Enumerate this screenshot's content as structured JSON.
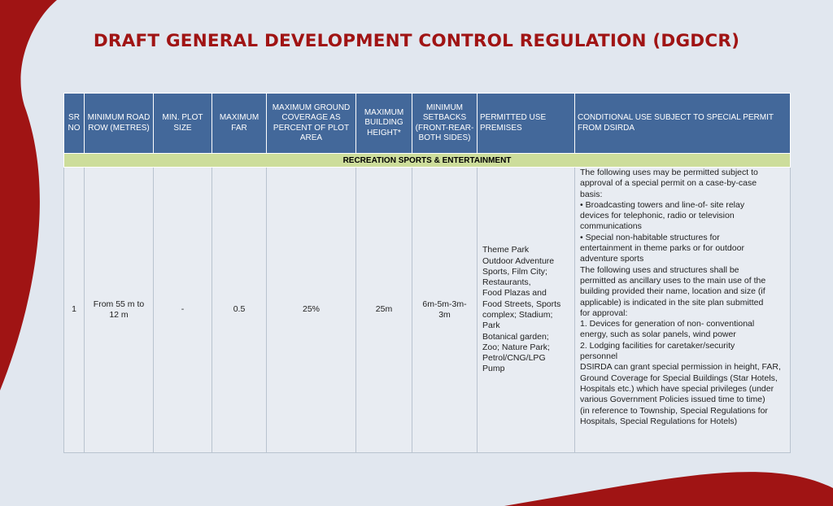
{
  "page": {
    "title": "DRAFT GENERAL DEVELOPMENT CONTROL REGULATION (DGDCR)"
  },
  "colors": {
    "background_red": "#a01414",
    "panel": "#e1e7ef",
    "header_blue": "#43689a",
    "category_green": "#cddd9b"
  },
  "table": {
    "headers": [
      "SR NO",
      "MINIMUM ROAD ROW (METRES)",
      "MIN. PLOT SIZE",
      "MAXIMUM FAR",
      "MAXIMUM GROUND COVERAGE AS PERCENT OF PLOT AREA",
      "MAXIMUM BUILDING HEIGHT*",
      "MINIMUM SETBACKS (FRONT-REAR-BOTH SIDES)",
      "PERMITTED USE PREMISES",
      "CONDITIONAL USE SUBJECT TO SPECIAL PERMIT FROM DSIRDA"
    ],
    "category": "RECREATION SPORTS & ENTERTAINMENT",
    "row": {
      "sr_no": "1",
      "road_row": "From 55 m to 12 m",
      "plot_size": "-",
      "far": "0.5",
      "ground_coverage": "25%",
      "building_height": "25m",
      "setbacks": "6m-5m-3m-3m",
      "permitted_uses": [
        "Theme Park",
        "Outdoor Adventure",
        "Sports, Film City;",
        "Restaurants,",
        "Food Plazas and",
        "Food Streets, Sports",
        "complex; Stadium;",
        "Park",
        "Botanical garden;",
        "Zoo; Nature Park;",
        "Petrol/CNG/LPG",
        "Pump"
      ],
      "conditional_uses": [
        "The following uses may be permitted subject to",
        "approval of a special permit on a case-by-case",
        "basis:",
        "•  Broadcasting towers and line-of- site relay",
        "devices for telephonic,  radio or television",
        "communications",
        "•  Special non-habitable structures  for",
        "entertainment in theme parks  or for outdoor",
        "adventure sports",
        "The following uses and structures shall be",
        "permitted as ancillary uses to the main use of the",
        "building provided their name, location and size (if",
        "applicable) is indicated in the site plan submitted",
        "for approval:",
        "1.  Devices for generation of non- conventional",
        "energy, such as solar  panels, wind power",
        "2.  Lodging facilities for  caretaker/security",
        "personnel",
        "DSIRDA can grant special permission in height, FAR,",
        "Ground Coverage for Special Buildings (Star Hotels,",
        "Hospitals etc.) which have special privileges (under",
        "various Government Policies issued time to time)",
        "(in reference to Township, Special Regulations for",
        "Hospitals, Special Regulations for Hotels)"
      ]
    }
  }
}
